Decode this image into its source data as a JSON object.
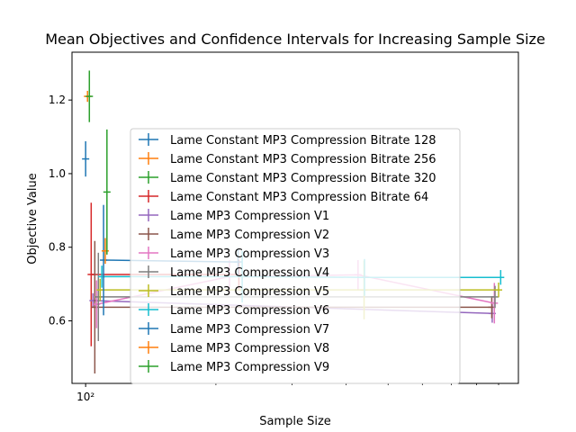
{
  "chart_data": {
    "type": "line",
    "title": "Mean Objectives and Confidence Intervals for Increasing Sample Size",
    "xlabel": "Sample Size",
    "ylabel": "Objective Value",
    "xscale": "log",
    "xlim": [
      93,
      1000
    ],
    "ylim": [
      0.43,
      1.33
    ],
    "yticks": [
      0.6,
      0.8,
      1.0,
      1.2
    ],
    "ytick_labels": [
      "0.6",
      "0.8",
      "1.0",
      "1.2"
    ],
    "xticks": [
      100
    ],
    "xtick_labels": [
      "10²"
    ],
    "legend_position": "center",
    "series": [
      {
        "name": "Lame Constant MP3 Compression Bitrate 128",
        "color": "#1f77b4",
        "points": [
          {
            "x": 100,
            "y": 1.04,
            "err": 0.048
          }
        ]
      },
      {
        "name": "Lame Constant MP3 Compression Bitrate 256",
        "color": "#ff7f0e",
        "points": [
          {
            "x": 101,
            "y": 1.21,
            "err": 0.015
          }
        ]
      },
      {
        "name": "Lame Constant MP3 Compression Bitrate 320",
        "color": "#2ca02c",
        "points": [
          {
            "x": 102,
            "y": 1.21,
            "err": 0.07
          }
        ]
      },
      {
        "name": "Lame Constant MP3 Compression Bitrate 64",
        "color": "#d62728",
        "points": [
          {
            "x": 103,
            "y": 0.726,
            "err": 0.195
          },
          {
            "x": 226,
            "y": 0.726,
            "err": 0.04
          }
        ]
      },
      {
        "name": "Lame MP3 Compression V1",
        "color": "#9467bd",
        "points": [
          {
            "x": 104,
            "y": 0.655,
            "err": 0.02
          },
          {
            "x": 870,
            "y": 0.62,
            "err": 0.025
          }
        ]
      },
      {
        "name": "Lame MP3 Compression V2",
        "color": "#8c564b",
        "points": [
          {
            "x": 105,
            "y": 0.637,
            "err": 0.18
          },
          {
            "x": 868,
            "y": 0.637,
            "err": 0.03
          }
        ]
      },
      {
        "name": "Lame MP3 Compression V3",
        "color": "#e377c2",
        "points": [
          {
            "x": 106,
            "y": 0.645,
            "err": 0.065
          },
          {
            "x": 215,
            "y": 0.72,
            "err": 0.045
          },
          {
            "x": 426,
            "y": 0.725,
            "err": 0.04
          },
          {
            "x": 880,
            "y": 0.648,
            "err": 0.055
          }
        ]
      },
      {
        "name": "Lame MP3 Compression V4",
        "color": "#7f7f7f",
        "points": [
          {
            "x": 107,
            "y": 0.665,
            "err": 0.12
          },
          {
            "x": 883,
            "y": 0.665,
            "err": 0.03
          }
        ]
      },
      {
        "name": "Lame MP3 Compression V5",
        "color": "#bcbd22",
        "points": [
          {
            "x": 108,
            "y": 0.684,
            "err": 0.03
          },
          {
            "x": 440,
            "y": 0.684,
            "err": 0.08
          },
          {
            "x": 900,
            "y": 0.684,
            "err": 0.02
          }
        ]
      },
      {
        "name": "Lame MP3 Compression V6",
        "color": "#17becf",
        "points": [
          {
            "x": 109,
            "y": 0.72,
            "err": 0.03
          },
          {
            "x": 230,
            "y": 0.72,
            "err": 0.07
          },
          {
            "x": 441,
            "y": 0.718,
            "err": 0.05
          },
          {
            "x": 910,
            "y": 0.718,
            "err": 0.02
          }
        ]
      },
      {
        "name": "Lame MP3 Compression V7",
        "color": "#1f77b4",
        "points": [
          {
            "x": 110,
            "y": 0.765,
            "err": 0.15
          },
          {
            "x": 225,
            "y": 0.76,
            "err": 0.035
          }
        ]
      },
      {
        "name": "Lame MP3 Compression V8",
        "color": "#ff7f0e",
        "points": [
          {
            "x": 111,
            "y": 0.79,
            "err": 0.035
          }
        ]
      },
      {
        "name": "Lame MP3 Compression V9",
        "color": "#2ca02c",
        "points": [
          {
            "x": 112,
            "y": 0.95,
            "err": 0.17
          }
        ]
      }
    ]
  }
}
